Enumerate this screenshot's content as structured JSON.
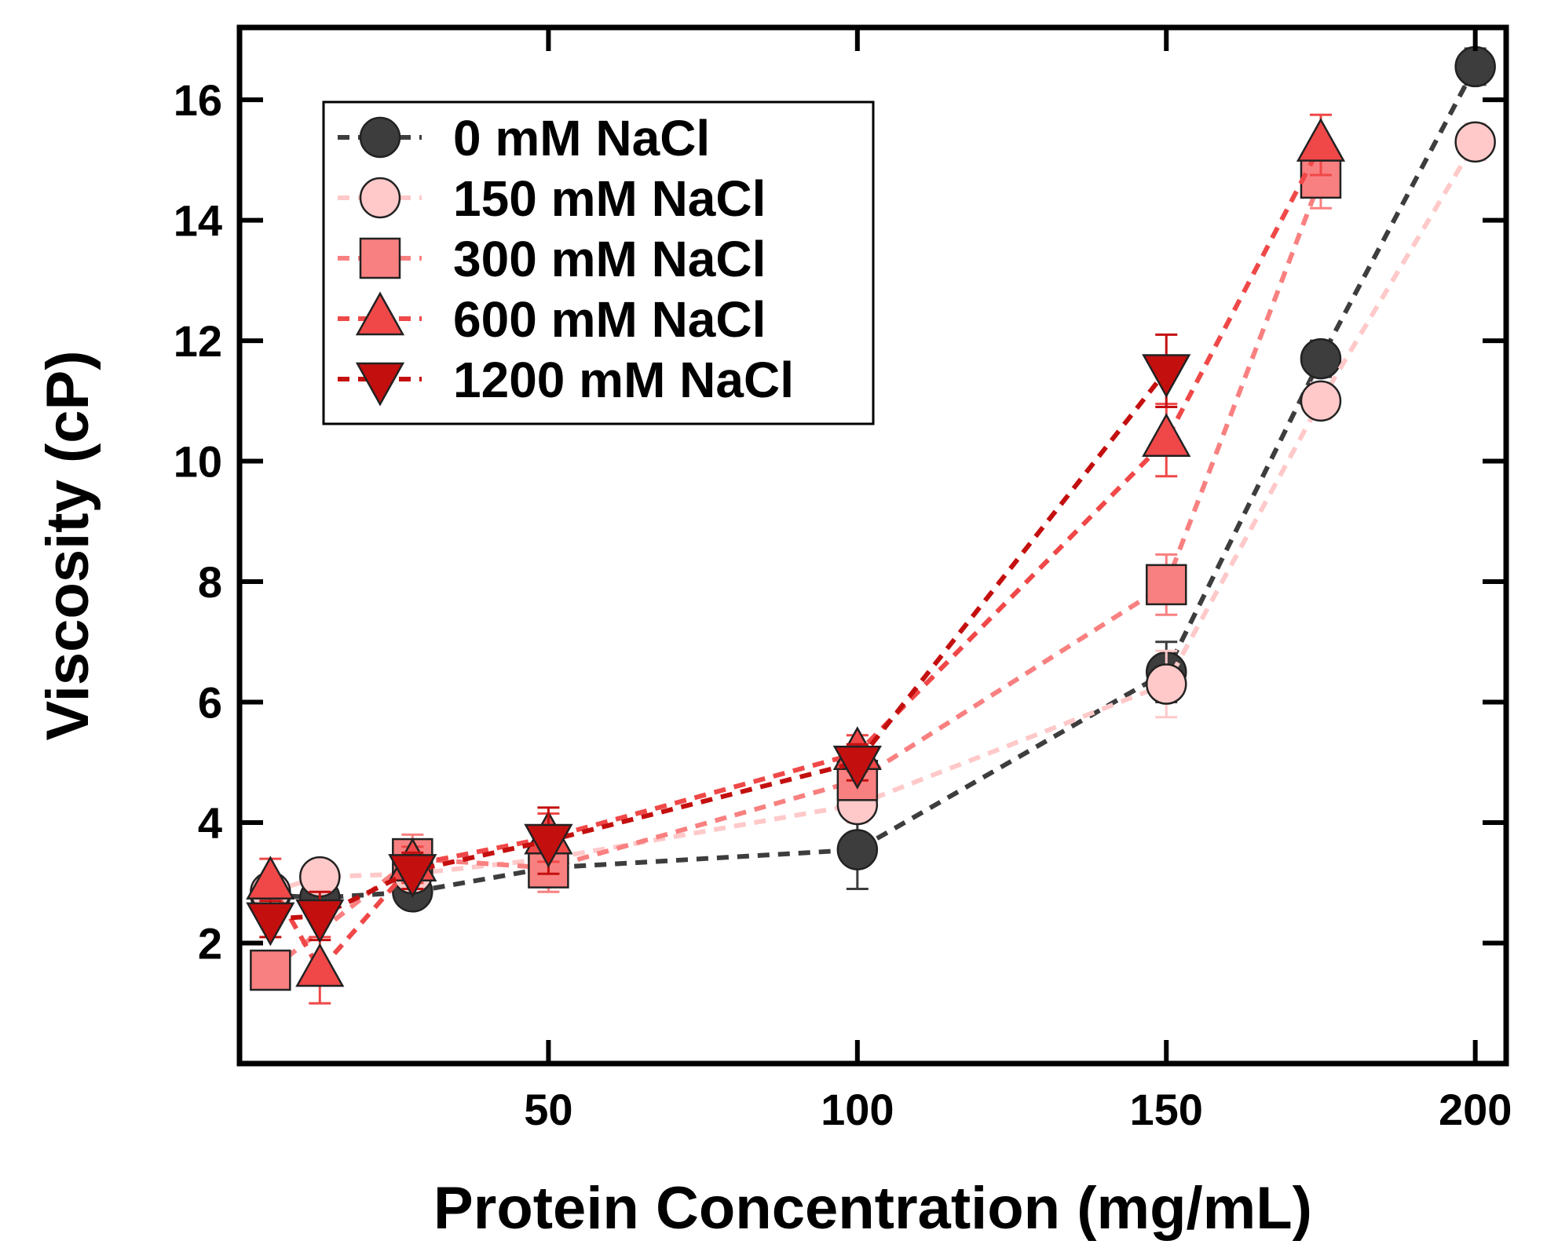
{
  "chart_data": {
    "type": "scatter",
    "xlabel": "Protein Concentration (mg/mL)",
    "ylabel": "Viscosity (cP)",
    "xlim": [
      0,
      205
    ],
    "ylim": [
      0,
      17.2
    ],
    "xticks": [
      50,
      100,
      150,
      200
    ],
    "xtick_labels": [
      "50",
      "100",
      "150",
      "200"
    ],
    "yticks": [
      2,
      4,
      6,
      8,
      10,
      12,
      14,
      16
    ],
    "ytick_labels": [
      "2",
      "4",
      "6",
      "8",
      "10",
      "12",
      "14",
      "16"
    ],
    "grid": false,
    "legend_position": "top-left",
    "line_style": "dashed",
    "series": [
      {
        "name": "0 mM NaCl",
        "marker": "circle",
        "color": "#3d3d3d",
        "x": [
          5,
          13,
          28,
          50,
          100,
          150,
          175,
          200
        ],
        "y": [
          2.8,
          2.75,
          2.85,
          3.25,
          3.55,
          6.5,
          11.7,
          16.55
        ],
        "error": [
          0.2,
          0.2,
          0.2,
          0.3,
          0.65,
          0.5,
          0.3,
          0.3
        ]
      },
      {
        "name": "150 mM NaCl",
        "marker": "circle",
        "color": "#ffc9c9",
        "x": [
          5,
          13,
          28,
          50,
          100,
          150,
          175,
          200
        ],
        "y": [
          2.85,
          3.1,
          3.15,
          3.4,
          4.3,
          6.3,
          11.0,
          15.3
        ],
        "error": [
          0.2,
          0.2,
          0.2,
          0.3,
          0.3,
          0.55,
          0.3,
          0.3
        ]
      },
      {
        "name": "300 mM NaCl",
        "marker": "square",
        "color": "#f98080",
        "x": [
          5,
          28,
          50,
          100,
          150,
          175
        ],
        "y": [
          1.55,
          3.4,
          3.25,
          4.7,
          7.95,
          14.7
        ],
        "error": [
          0.2,
          0.4,
          0.4,
          0.3,
          0.5,
          0.5
        ]
      },
      {
        "name": "600 mM NaCl",
        "marker": "triangle-up",
        "color": "#f04848",
        "x": [
          5,
          13,
          28,
          50,
          100,
          150,
          175
        ],
        "y": [
          3.0,
          1.55,
          3.3,
          3.75,
          5.15,
          10.35,
          15.25
        ],
        "error": [
          0.4,
          0.55,
          0.3,
          0.4,
          0.3,
          0.6,
          0.5
        ]
      },
      {
        "name": "1200 mM NaCl",
        "marker": "triangle-down",
        "color": "#c40f0f",
        "x": [
          5,
          13,
          28,
          50,
          100,
          150
        ],
        "y": [
          2.4,
          2.45,
          3.2,
          3.7,
          5.0,
          11.5
        ],
        "error": [
          0.3,
          0.4,
          0.3,
          0.55,
          0.3,
          0.6
        ]
      }
    ]
  }
}
